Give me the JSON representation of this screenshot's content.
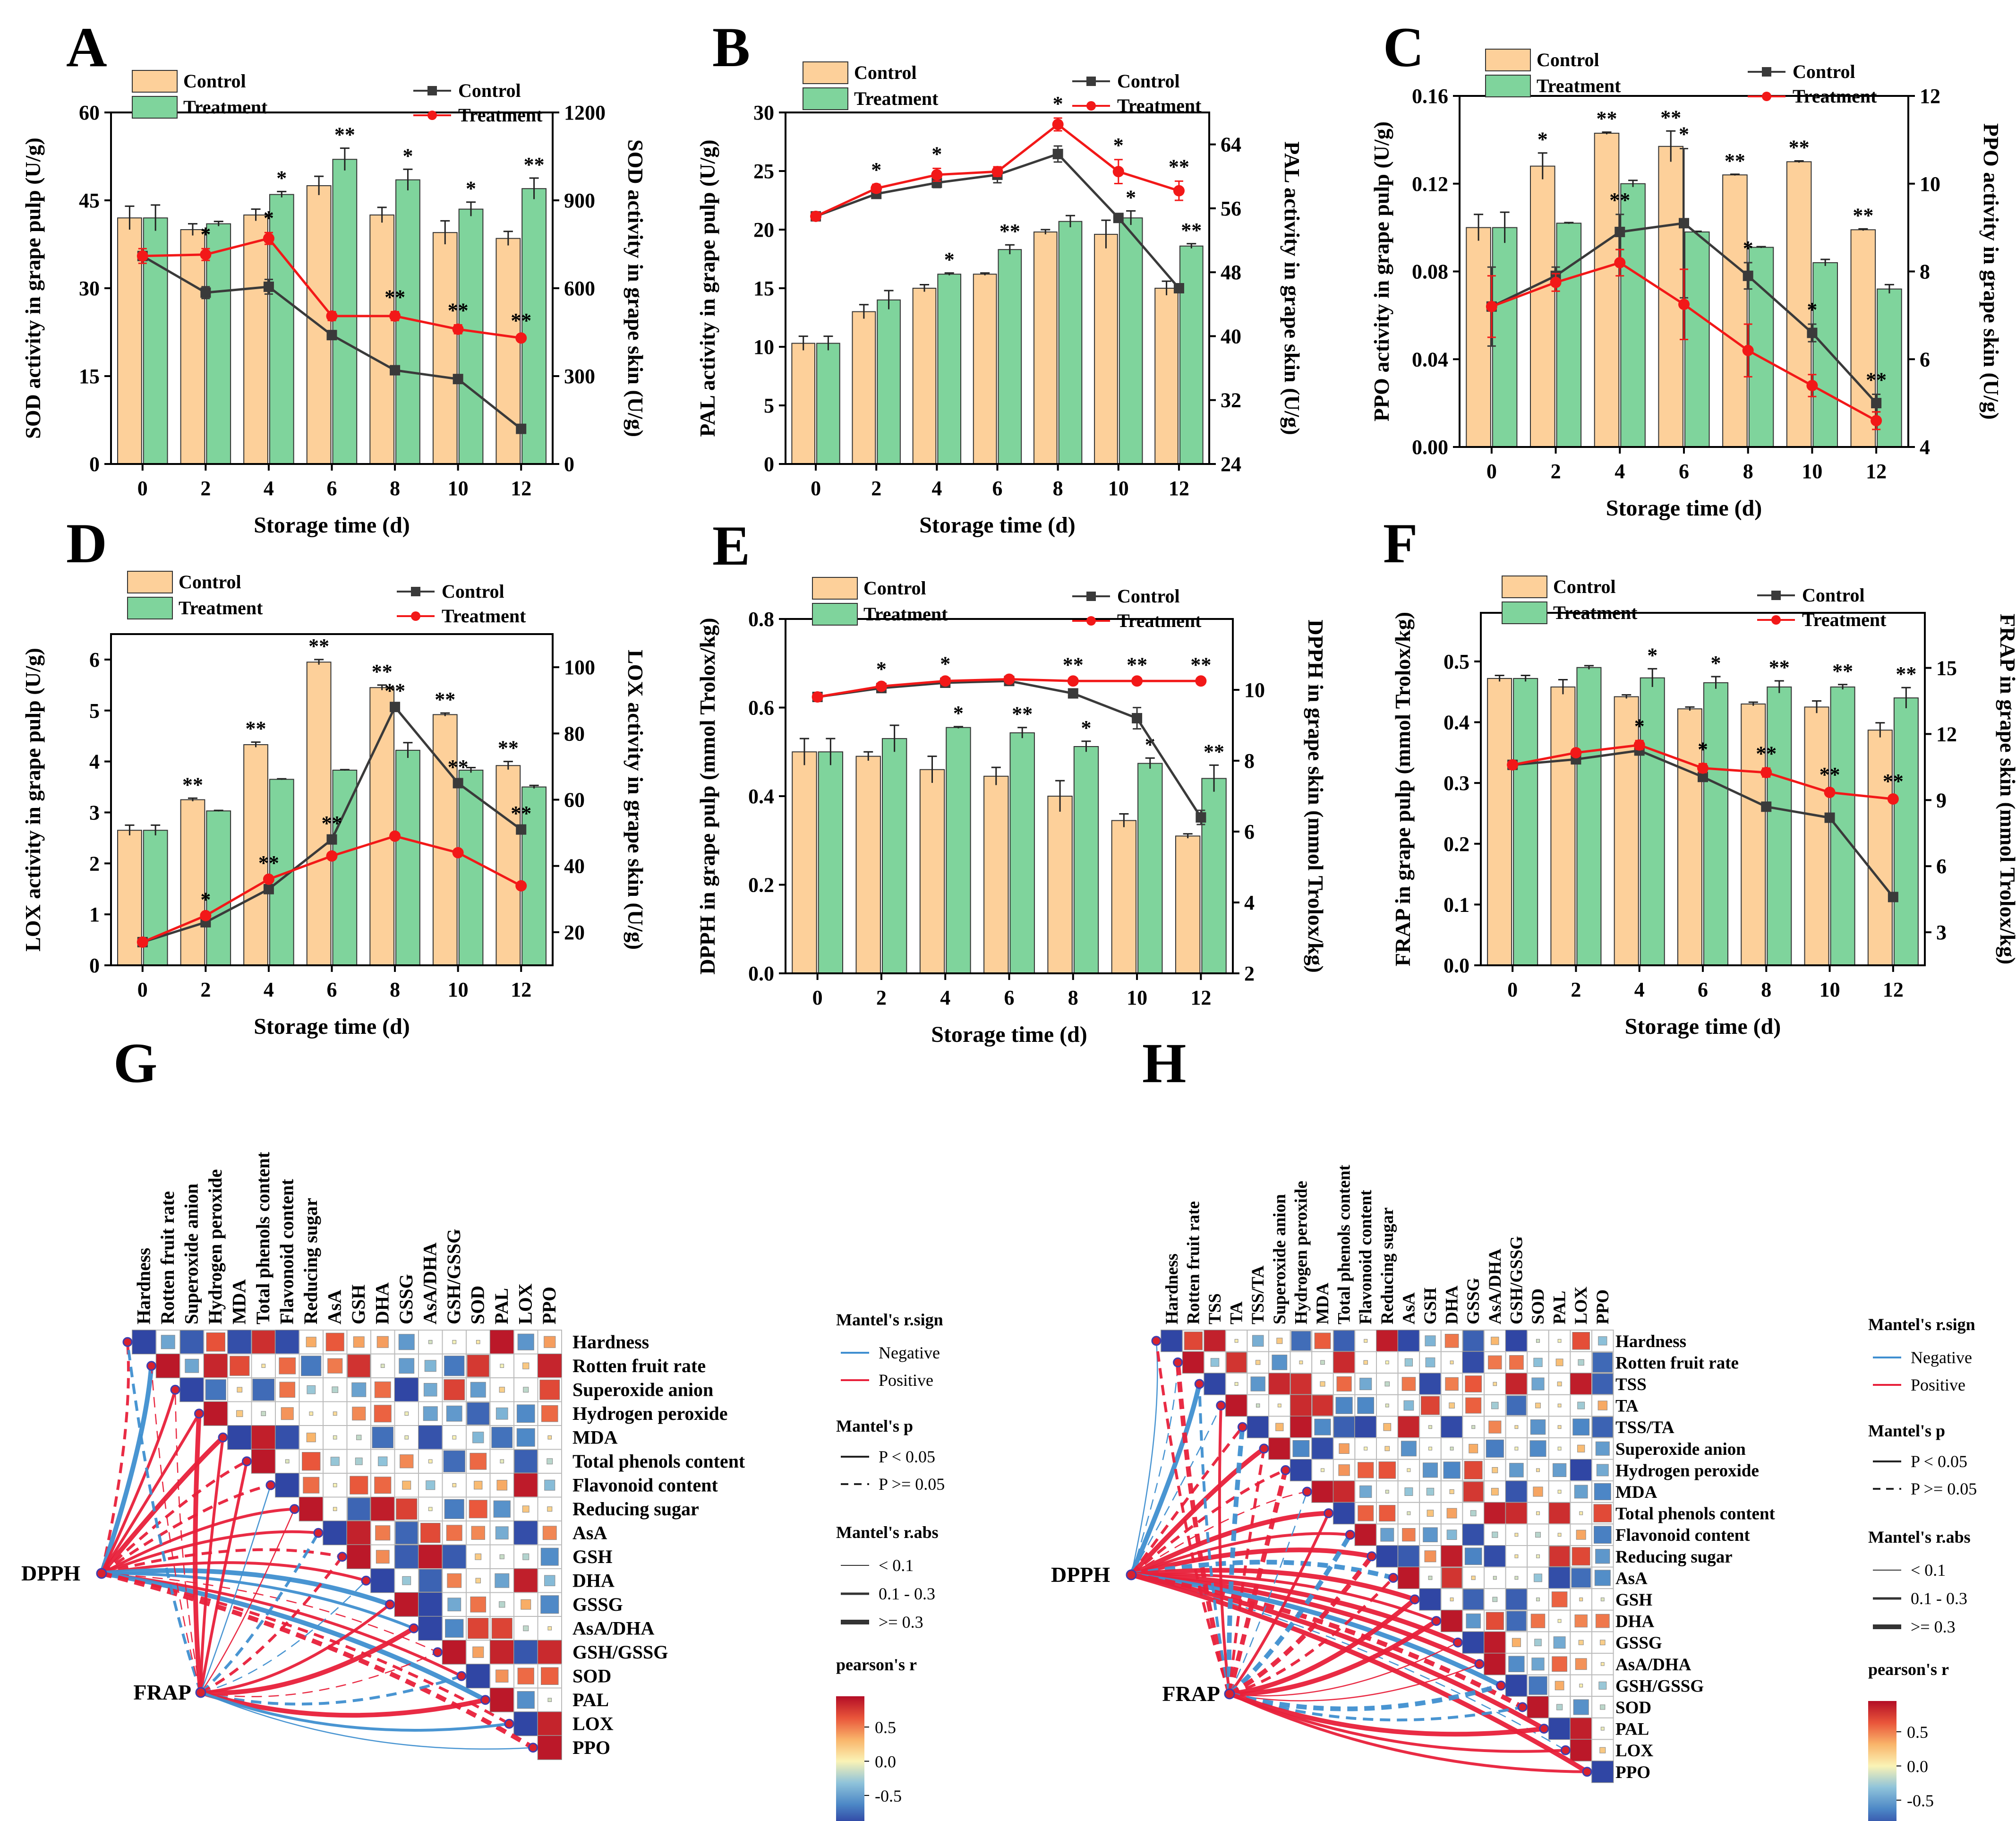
{
  "colors": {
    "control_bar": "#FDD09A",
    "treatment_bar": "#7FD49C",
    "control_line": "#3A3A3A",
    "treatment_line": "#F21818",
    "positive_edge": "#E8203A",
    "negative_edge": "#3F8FD0",
    "colorbar": [
      "#2B3A9E",
      "#4C87C6",
      "#8FC3DA",
      "#FAF3B5",
      "#F9B46A",
      "#E9553A",
      "#B30D26"
    ]
  },
  "chart_data": [
    {
      "id": "A",
      "type": "bar+line",
      "panel_label": "A",
      "xlabel": "Storage time (d)",
      "ylabel_left": "SOD activity in grape pulp (U/g)",
      "ylabel_right": "SOD activity in grape skin (U/g)",
      "categories": [
        "0",
        "2",
        "4",
        "6",
        "8",
        "10",
        "12"
      ],
      "ylim_left": [
        0,
        60
      ],
      "yticks_left": [
        "0",
        "15",
        "30",
        "45",
        "60"
      ],
      "ylim_right": [
        0,
        1200
      ],
      "yticks_right": [
        "0",
        "300",
        "600",
        "900",
        "1200"
      ],
      "bar_series": [
        {
          "name": "Control",
          "values": [
            42,
            40,
            42.5,
            47.5,
            42.5,
            39.5,
            38.5
          ],
          "errors": [
            2,
            1,
            1,
            1.6,
            1.3,
            2,
            1.2
          ]
        },
        {
          "name": "Treatment",
          "values": [
            42,
            41,
            46,
            52,
            48.5,
            43.5,
            47
          ],
          "errors": [
            2.2,
            0.4,
            0.5,
            1.9,
            1.8,
            1.2,
            1.8
          ]
        }
      ],
      "line_series": [
        {
          "name": "Control",
          "values": [
            710,
            585,
            605,
            440,
            320,
            290,
            120
          ],
          "errors": [
            15,
            20,
            25,
            15,
            15,
            10,
            10
          ]
        },
        {
          "name": "Treatment",
          "values": [
            710,
            715,
            770,
            505,
            505,
            460,
            430
          ],
          "errors": [
            25,
            20,
            20,
            15,
            15,
            15,
            10
          ]
        }
      ],
      "bar_annotations": [
        "",
        "",
        "*",
        "**",
        "*",
        "*",
        "**"
      ],
      "line_annotations": [
        "",
        "*",
        "*",
        "",
        "**",
        "**",
        "**"
      ]
    },
    {
      "id": "B",
      "type": "bar+line",
      "panel_label": "B",
      "xlabel": "Storage time (d)",
      "ylabel_left": "PAL activity in grape pulp (U/g)",
      "ylabel_right": "PAL activity in grape skin (U/g)",
      "categories": [
        "0",
        "2",
        "4",
        "6",
        "8",
        "10",
        "12"
      ],
      "ylim_left": [
        0,
        30
      ],
      "yticks_left": [
        "0",
        "5",
        "10",
        "15",
        "20",
        "25",
        "30"
      ],
      "ylim_right": [
        24,
        68
      ],
      "yticks_right": [
        "24",
        "32",
        "40",
        "48",
        "56",
        "64"
      ],
      "bar_series": [
        {
          "name": "Control",
          "values": [
            10.3,
            13,
            15,
            16.2,
            19.8,
            19.6,
            15
          ],
          "errors": [
            0.6,
            0.6,
            0.3,
            0.1,
            0.2,
            1.2,
            0.6
          ]
        },
        {
          "name": "Treatment",
          "values": [
            10.3,
            14,
            16.2,
            18.3,
            20.7,
            21,
            18.6
          ],
          "errors": [
            0.6,
            0.8,
            0.1,
            0.4,
            0.5,
            0.6,
            0.2
          ]
        }
      ],
      "line_series": [
        {
          "name": "Control",
          "values": [
            55,
            57.8,
            59.2,
            60.2,
            62.8,
            54.8,
            46
          ],
          "errors": [
            0.5,
            0.5,
            0.6,
            1,
            1,
            0.5,
            0.5
          ]
        },
        {
          "name": "Treatment",
          "values": [
            55,
            58.5,
            60.2,
            60.6,
            66.5,
            60.6,
            58.2
          ],
          "errors": [
            0.5,
            0.5,
            0.8,
            0.6,
            0.8,
            1.5,
            1.2
          ]
        }
      ],
      "bar_annotations": [
        "",
        "",
        "*",
        "**",
        "",
        "*",
        "**"
      ],
      "line_annotations": [
        "",
        "*",
        "*",
        "",
        "*",
        "*",
        "**"
      ]
    },
    {
      "id": "C",
      "type": "bar+line",
      "panel_label": "C",
      "xlabel": "Storage time (d)",
      "ylabel_left": "PPO activity in grape pulp (U/g)",
      "ylabel_right": "PPO activity in grape skin (U/g)",
      "categories": [
        "0",
        "2",
        "4",
        "6",
        "8",
        "10",
        "12"
      ],
      "ylim_left": [
        0,
        0.16
      ],
      "yticks_left": [
        "0.00",
        "0.04",
        "0.08",
        "0.12",
        "0.16"
      ],
      "ylim_right": [
        4,
        12
      ],
      "yticks_right": [
        "4",
        "6",
        "8",
        "10",
        "12"
      ],
      "bar_series": [
        {
          "name": "Control",
          "values": [
            0.1,
            0.128,
            0.143,
            0.137,
            0.124,
            0.13,
            0.099
          ],
          "errors": [
            0.006,
            0.006,
            0.0005,
            0.007,
            0.0003,
            0.0004,
            0.0004
          ]
        },
        {
          "name": "Treatment",
          "values": [
            0.1,
            0.102,
            0.12,
            0.098,
            0.091,
            0.084,
            0.072
          ],
          "errors": [
            0.007,
            0.0003,
            0.0015,
            0.0003,
            0.0003,
            0.0015,
            0.002
          ]
        }
      ],
      "line_series": [
        {
          "name": "Control",
          "values": [
            7.2,
            7.9,
            8.9,
            9.1,
            7.9,
            6.6,
            5
          ],
          "errors": [
            0.9,
            0.2,
            0.4,
            1.7,
            0.3,
            0.2,
            0.2
          ]
        },
        {
          "name": "Treatment",
          "values": [
            7.2,
            7.75,
            8.2,
            7.25,
            6.2,
            5.4,
            4.6
          ],
          "errors": [
            0.7,
            0.2,
            0.3,
            0.8,
            0.6,
            0.25,
            0.2
          ]
        }
      ],
      "bar_annotations": [
        "",
        "*",
        "**",
        "**",
        "**",
        "**",
        "**"
      ],
      "line_annotations": [
        "",
        "",
        "**",
        "*",
        "*",
        "*",
        "**"
      ]
    },
    {
      "id": "D",
      "type": "bar+line",
      "panel_label": "D",
      "xlabel": "Storage time (d)",
      "ylabel_left": "LOX activity in grape pulp (U/g)",
      "ylabel_right": "LOX activity in grape skin (U/g)",
      "categories": [
        "0",
        "2",
        "4",
        "6",
        "8",
        "10",
        "12"
      ],
      "ylim_left": [
        0,
        6.5
      ],
      "yticks_left": [
        "0",
        "1",
        "2",
        "3",
        "4",
        "5",
        "6"
      ],
      "ylim_right": [
        10,
        110
      ],
      "yticks_right": [
        "20",
        "40",
        "60",
        "80",
        "100"
      ],
      "bar_series": [
        {
          "name": "Control",
          "values": [
            2.65,
            3.25,
            4.33,
            5.95,
            5.45,
            4.92,
            3.92
          ],
          "errors": [
            0.1,
            0.03,
            0.05,
            0.05,
            0.05,
            0.03,
            0.08
          ]
        },
        {
          "name": "Treatment",
          "values": [
            2.65,
            3.03,
            3.65,
            3.83,
            4.22,
            3.83,
            3.5
          ],
          "errors": [
            0.1,
            0.01,
            0.01,
            0.01,
            0.15,
            0.05,
            0.03
          ]
        }
      ],
      "line_series": [
        {
          "name": "Control",
          "values": [
            17,
            23,
            33,
            48,
            88,
            65,
            51
          ],
          "errors": [
            0.5,
            0.5,
            0.5,
            0.5,
            0.5,
            0.5,
            0.5
          ]
        },
        {
          "name": "Treatment",
          "values": [
            17,
            25,
            36,
            43,
            49,
            44,
            34
          ],
          "errors": [
            0.5,
            0.5,
            0.5,
            0.5,
            0.5,
            0.5,
            0.5
          ]
        }
      ],
      "bar_annotations": [
        "",
        "**",
        "**",
        "**",
        "**",
        "**",
        "**"
      ],
      "line_annotations": [
        "",
        "*",
        "**",
        "**",
        "**",
        "**",
        "**"
      ]
    },
    {
      "id": "E",
      "type": "bar+line",
      "panel_label": "E",
      "xlabel": "Storage time (d)",
      "ylabel_left": "DPPH in grape pulp (mmol Trolox/kg)",
      "ylabel_right": "DPPH in grape skin (mmol Trolox/kg)",
      "categories": [
        "0",
        "2",
        "4",
        "6",
        "8",
        "10",
        "12"
      ],
      "ylim_left": [
        0,
        0.8
      ],
      "yticks_left": [
        "0.0",
        "0.2",
        "0.4",
        "0.6",
        "0.8"
      ],
      "ylim_right": [
        2,
        12
      ],
      "yticks_right": [
        "2",
        "4",
        "6",
        "8",
        "10"
      ],
      "bar_series": [
        {
          "name": "Control",
          "values": [
            0.5,
            0.49,
            0.46,
            0.445,
            0.4,
            0.345,
            0.31
          ],
          "errors": [
            0.03,
            0.01,
            0.03,
            0.02,
            0.035,
            0.015,
            0.005
          ]
        },
        {
          "name": "Treatment",
          "values": [
            0.5,
            0.53,
            0.555,
            0.543,
            0.512,
            0.474,
            0.44
          ],
          "errors": [
            0.03,
            0.03,
            0.002,
            0.012,
            0.012,
            0.012,
            0.03
          ]
        }
      ],
      "line_series": [
        {
          "name": "Control",
          "values": [
            9.8,
            10.05,
            10.2,
            10.25,
            9.9,
            9.2,
            6.4
          ],
          "errors": [
            0.08,
            0.08,
            0.08,
            0.08,
            0.1,
            0.3,
            0.2
          ]
        },
        {
          "name": "Treatment",
          "values": [
            9.8,
            10.1,
            10.25,
            10.3,
            10.25,
            10.25,
            10.25
          ],
          "errors": [
            0.08,
            0.08,
            0.08,
            0.05,
            0.05,
            0.05,
            0.05
          ]
        }
      ],
      "bar_annotations": [
        "",
        "",
        "*",
        "**",
        "*",
        "*",
        "**"
      ],
      "line_annotations": [
        "",
        "*",
        "*",
        "",
        "**",
        "**",
        "**"
      ]
    },
    {
      "id": "F",
      "type": "bar+line",
      "panel_label": "F",
      "xlabel": "Storage time (d)",
      "ylabel_left": "FRAP in grape pulp (mmol Trolox/kg)",
      "ylabel_right": "FRAP in grape skin (mmol Trolox/kg)",
      "categories": [
        "0",
        "2",
        "4",
        "6",
        "8",
        "10",
        "12"
      ],
      "ylim_left": [
        0,
        0.58
      ],
      "yticks_left": [
        "0.0",
        "0.1",
        "0.2",
        "0.3",
        "0.4",
        "0.5"
      ],
      "ylim_right": [
        1.5,
        17.5
      ],
      "yticks_right": [
        "3",
        "6",
        "9",
        "12",
        "15"
      ],
      "bar_series": [
        {
          "name": "Control",
          "values": [
            0.472,
            0.458,
            0.442,
            0.422,
            0.43,
            0.425,
            0.387
          ],
          "errors": [
            0.005,
            0.012,
            0.003,
            0.003,
            0.003,
            0.01,
            0.012
          ]
        },
        {
          "name": "Treatment",
          "values": [
            0.472,
            0.49,
            0.473,
            0.465,
            0.458,
            0.458,
            0.44
          ],
          "errors": [
            0.005,
            0.003,
            0.015,
            0.01,
            0.01,
            0.004,
            0.017
          ]
        }
      ],
      "line_series": [
        {
          "name": "Control",
          "values": [
            10.6,
            10.85,
            11.25,
            10.05,
            8.7,
            8.2,
            4.6
          ],
          "errors": [
            0.15,
            0.15,
            0.2,
            0.15,
            0.15,
            0.15,
            0.2
          ]
        },
        {
          "name": "Treatment",
          "values": [
            10.6,
            11.15,
            11.5,
            10.45,
            10.25,
            9.35,
            9.05
          ],
          "errors": [
            0.15,
            0.15,
            0.2,
            0.2,
            0.2,
            0.15,
            0.15
          ]
        }
      ],
      "bar_annotations": [
        "",
        "",
        "*",
        "*",
        "**",
        "**",
        "**"
      ],
      "line_annotations": [
        "",
        "",
        "*",
        "*",
        "**",
        "**",
        "**"
      ]
    },
    {
      "id": "G",
      "type": "heatmap",
      "panel_label": "G",
      "variables": [
        "Hardness",
        "Rotten fruit rate",
        "Superoxide anion",
        "Hydrogen peroxide",
        "MDA",
        "Total phenols content",
        "Flavonoid content",
        "Reducing sugar",
        "AsA",
        "GSH",
        "DHA",
        "GSSG",
        "AsA/DHA",
        "GSH/GSSG",
        "SOD",
        "PAL",
        "LOX",
        "PPO"
      ],
      "mantel_sources": [
        "DPPH",
        "FRAP"
      ],
      "legend_titles": {
        "sign": "Mantel's r.sign",
        "p": "Mantel's p",
        "abs": "Mantel's r.abs",
        "colorbar": "pearson's r"
      },
      "legend_sign": [
        "Negative",
        "Positive"
      ],
      "legend_p": [
        "P < 0.05",
        "P >= 0.05"
      ],
      "legend_abs": [
        "< 0.1",
        "0.1 - 0.3",
        ">= 0.3"
      ],
      "colorbar_ticks": [
        "0.5",
        "0.0",
        "-0.5"
      ]
    },
    {
      "id": "H",
      "type": "heatmap",
      "panel_label": "H",
      "variables": [
        "Hardness",
        "Rotten fruit rate",
        "TSS",
        "TA",
        "TSS/TA",
        "Superoxide anion",
        "Hydrogen peroxide",
        "MDA",
        "Total phenols content",
        "Flavonoid content",
        "Reducing sugar",
        "AsA",
        "GSH",
        "DHA",
        "GSSG",
        "AsA/DHA",
        "GSH/GSSG",
        "SOD",
        "PAL",
        "LOX",
        "PPO"
      ],
      "mantel_sources": [
        "DPPH",
        "FRAP"
      ],
      "legend_titles": {
        "sign": "Mantel's r.sign",
        "p": "Mantel's p",
        "abs": "Mantel's r.abs",
        "colorbar": "pearson's r"
      },
      "legend_sign": [
        "Negative",
        "Positive"
      ],
      "legend_p": [
        "P < 0.05",
        "P >= 0.05"
      ],
      "legend_abs": [
        "< 0.1",
        "0.1 - 0.3",
        ">= 0.3"
      ],
      "colorbar_ticks": [
        "0.5",
        "0.0",
        "-0.5"
      ]
    }
  ]
}
